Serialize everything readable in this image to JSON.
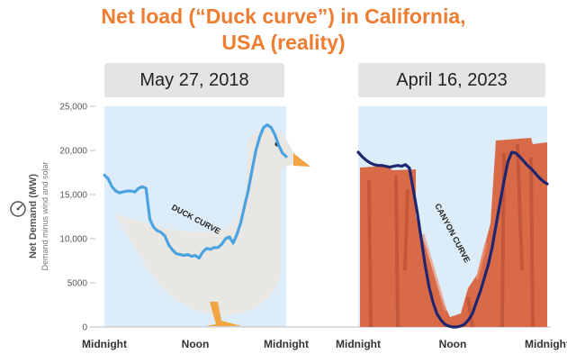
{
  "header": {
    "title_line1": "Net load (“Duck curve”) in California,",
    "title_line2": "USA (reality)"
  },
  "colors": {
    "title": "#ed7d31",
    "panel_bg": "#dcecf8",
    "duck_line": "#4aa3e0",
    "canyon_line": "#1f2670",
    "duck_body": "#e9e7e3",
    "duck_beak": "#f2a541",
    "canyon_rock": "#d96a48"
  },
  "chart_data": [
    {
      "type": "line",
      "title": "May 27, 2018",
      "annotation": "DUCK CURVE",
      "ylabel": "Net Demand (MW)",
      "ylabel_sub": "Demand minus wind and solar",
      "ylim": [
        0,
        25000
      ],
      "yticks": [
        0,
        5000,
        10000,
        15000,
        20000,
        25000
      ],
      "ytick_labels": [
        "0",
        "5000",
        "10,000",
        "15,000",
        "20,000",
        "25,000"
      ],
      "xlim": [
        0,
        24
      ],
      "xtick_positions": [
        0,
        12,
        24
      ],
      "xtick_labels": [
        "Midnight",
        "Noon",
        "Midnight"
      ],
      "series": [
        {
          "x": [
            0,
            0.5,
            1,
            1.5,
            2,
            2.5,
            3,
            3.5,
            4,
            4.5,
            5,
            5.5,
            6,
            6.5,
            7,
            7.5,
            8,
            8.5,
            9,
            9.5,
            10,
            10.5,
            11,
            11.5,
            12,
            12.5,
            13,
            13.5,
            14,
            14.5,
            15,
            15.5,
            16,
            16.5,
            17,
            17.5,
            18,
            18.5,
            19,
            19.5,
            20,
            20.5,
            21,
            21.5,
            22,
            22.5,
            23,
            23.5,
            24
          ],
          "y": [
            17200,
            16800,
            15900,
            15400,
            15200,
            15300,
            15400,
            15400,
            15300,
            15700,
            15900,
            15700,
            12200,
            11300,
            10900,
            10700,
            10300,
            9300,
            8700,
            8300,
            8200,
            8100,
            8200,
            8000,
            8100,
            7800,
            8500,
            8900,
            8800,
            9000,
            9000,
            9400,
            10000,
            10200,
            9500,
            10500,
            11800,
            13700,
            15500,
            17800,
            20000,
            21500,
            22600,
            22900,
            22600,
            21800,
            20600,
            19700,
            19300
          ]
        }
      ]
    },
    {
      "type": "line",
      "title": "April 16, 2023",
      "annotation": "CANYON CURVE",
      "ylim": [
        0,
        25000
      ],
      "xlim": [
        0,
        24
      ],
      "xtick_positions": [
        0,
        12,
        24
      ],
      "xtick_labels": [
        "Midnight",
        "Noon",
        "Midnight"
      ],
      "series": [
        {
          "x": [
            0,
            0.5,
            1,
            1.5,
            2,
            2.5,
            3,
            3.5,
            4,
            4.5,
            5,
            5.5,
            6,
            6.5,
            7,
            7.5,
            8,
            8.5,
            9,
            9.5,
            10,
            10.5,
            11,
            11.5,
            12,
            12.5,
            13,
            13.5,
            14,
            14.5,
            15,
            15.5,
            16,
            16.5,
            17,
            17.5,
            18,
            18.5,
            19,
            19.5,
            20,
            20.5,
            21,
            21.5,
            22,
            22.5,
            23,
            23.5,
            24
          ],
          "y": [
            19800,
            19300,
            18900,
            18600,
            18400,
            18300,
            18300,
            18200,
            18100,
            18200,
            18300,
            18200,
            18400,
            18000,
            15500,
            13000,
            10000,
            7000,
            4500,
            2800,
            1500,
            800,
            300,
            100,
            0,
            0,
            100,
            300,
            800,
            1500,
            2800,
            4000,
            5500,
            7000,
            9000,
            11500,
            14000,
            16500,
            18700,
            19800,
            19700,
            19300,
            18800,
            18300,
            17900,
            17400,
            16900,
            16500,
            16200
          ]
        }
      ]
    }
  ]
}
